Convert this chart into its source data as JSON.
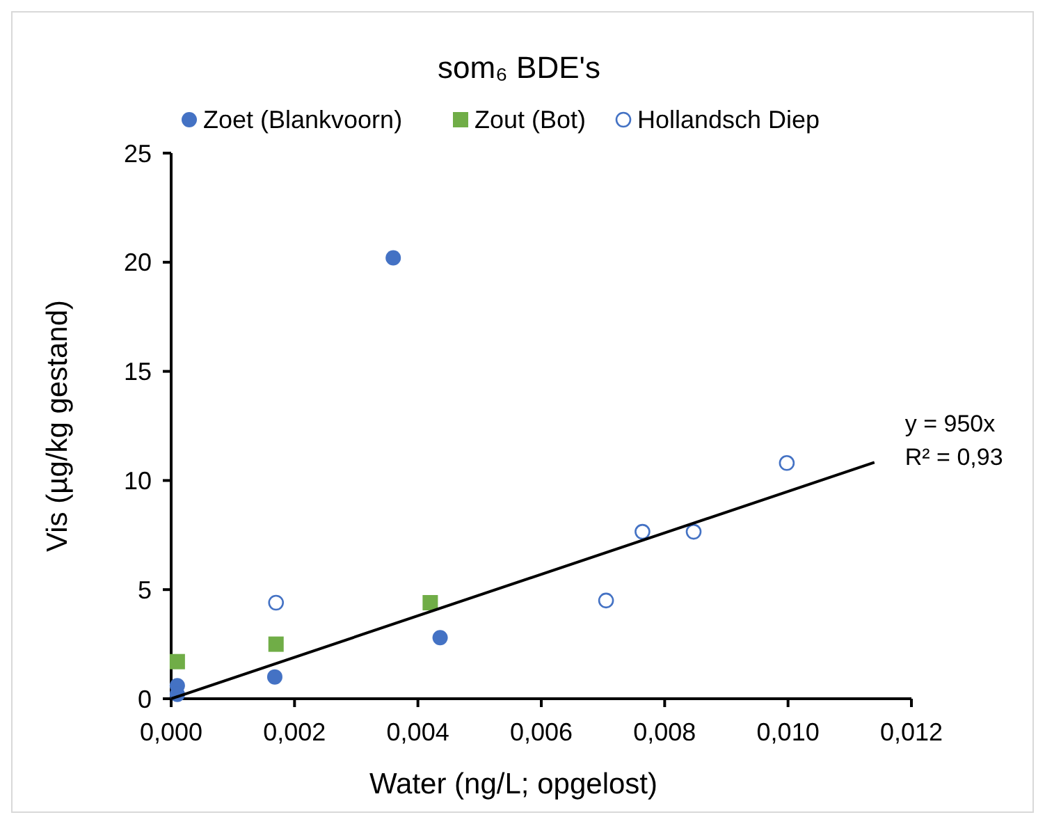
{
  "chart_data": {
    "type": "scatter",
    "title": "som₆ BDE's",
    "xlabel": "Water (ng/L; opgelost)",
    "ylabel": "Vis (µg/kg gestand)",
    "xlim": [
      0,
      0.012
    ],
    "ylim": [
      0,
      25
    ],
    "xticks": [
      {
        "value": 0,
        "label": "0,000"
      },
      {
        "value": 0.002,
        "label": "0,002"
      },
      {
        "value": 0.004,
        "label": "0,004"
      },
      {
        "value": 0.006,
        "label": "0,006"
      },
      {
        "value": 0.008,
        "label": "0,008"
      },
      {
        "value": 0.01,
        "label": "0,010"
      },
      {
        "value": 0.012,
        "label": "0,012"
      }
    ],
    "yticks": [
      0,
      5,
      10,
      15,
      20,
      25
    ],
    "grid": false,
    "legend": "top",
    "series": [
      {
        "name": "Zoet (Blankvoorn)",
        "color": "#4472c4",
        "marker": "circle",
        "x": [
          0.0001,
          0.0001,
          0.00168,
          0.0036,
          0.00436
        ],
        "values": [
          0.6,
          0.2,
          1.0,
          20.2,
          2.8
        ]
      },
      {
        "name": "Zout (Bot)",
        "color": "#70ad47",
        "marker": "square",
        "x": [
          0.0001,
          0.0017,
          0.0042
        ],
        "values": [
          1.7,
          2.5,
          4.4
        ]
      },
      {
        "name": "Hollandsch Diep",
        "color": "#4472c4",
        "marker": "open-circle",
        "x": [
          0.0017,
          0.00705,
          0.00764,
          0.00847,
          0.00998
        ],
        "values": [
          4.4,
          4.5,
          7.65,
          7.65,
          10.8
        ]
      },
      {
        "type": "line",
        "color": "#000000",
        "marker": "none",
        "x": [
          0,
          0.0114
        ],
        "values": [
          0,
          10.83
        ]
      }
    ],
    "annotations": [
      {
        "text": "y = 950x",
        "x": 0.0114,
        "y": 10.83
      },
      {
        "text": "R² = 0,93",
        "x": 0.0114,
        "y": 10.83
      }
    ]
  }
}
